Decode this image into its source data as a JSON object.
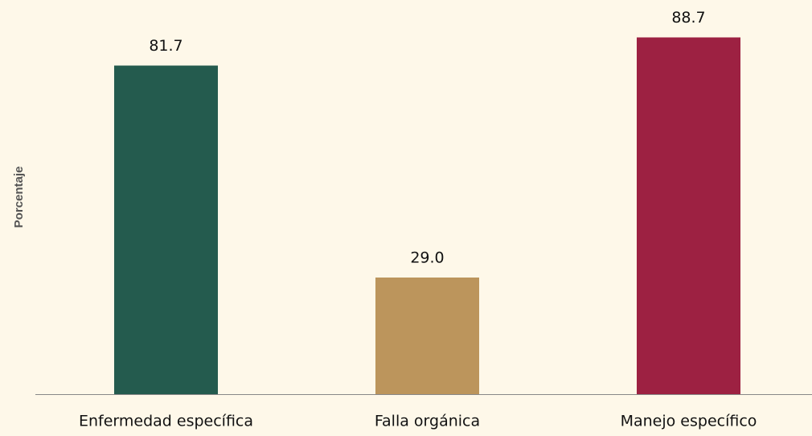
{
  "chart_data": {
    "type": "bar",
    "ylabel": "Porcentaje",
    "categories": [
      "Enfermedad específica",
      "Falla orgánica",
      "Manejo específico"
    ],
    "values": [
      81.7,
      29.0,
      88.7
    ],
    "value_labels": [
      "81.7",
      "29.0",
      "88.7"
    ],
    "colors": [
      "#245b4e",
      "#bc955c",
      "#9d2142"
    ],
    "ylim": [
      0,
      90
    ]
  }
}
